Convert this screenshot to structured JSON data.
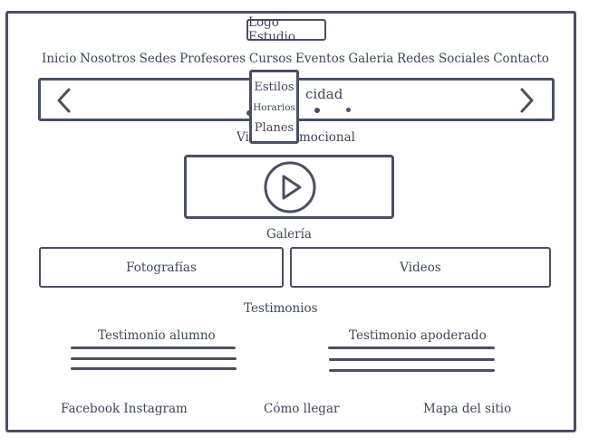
{
  "header": {
    "logo": "Logo Estudio"
  },
  "nav": {
    "items": [
      "Inicio",
      "Nosotros",
      "Sedes",
      "Profesores",
      "Cursos",
      "Eventos",
      "Galeria",
      "Redes Sociales",
      "Contacto"
    ]
  },
  "carousel": {
    "caption_partial": "cidad",
    "prev_icon": "chevron-left-icon",
    "next_icon": "chevron-right-icon",
    "dots": 3
  },
  "dropdown": {
    "items": [
      "Estilos",
      "Horarios",
      "Planes"
    ]
  },
  "video": {
    "label_left": "Vi",
    "label_right": "mocional",
    "play_icon": "play-icon"
  },
  "gallery": {
    "title": "Galería",
    "photos_label": "Fotografías",
    "videos_label": "Videos"
  },
  "testimonials": {
    "title": "Testimonios",
    "student": "Testimonio alumno",
    "guardian": "Testimonio apoderado"
  },
  "footer": {
    "social": "Facebook Instagram",
    "directions": "Cómo llegar",
    "sitemap": "Mapa del sitio"
  },
  "colors": {
    "ink": "#4a5062",
    "text": "#3e4658",
    "background": "#ffffff"
  }
}
